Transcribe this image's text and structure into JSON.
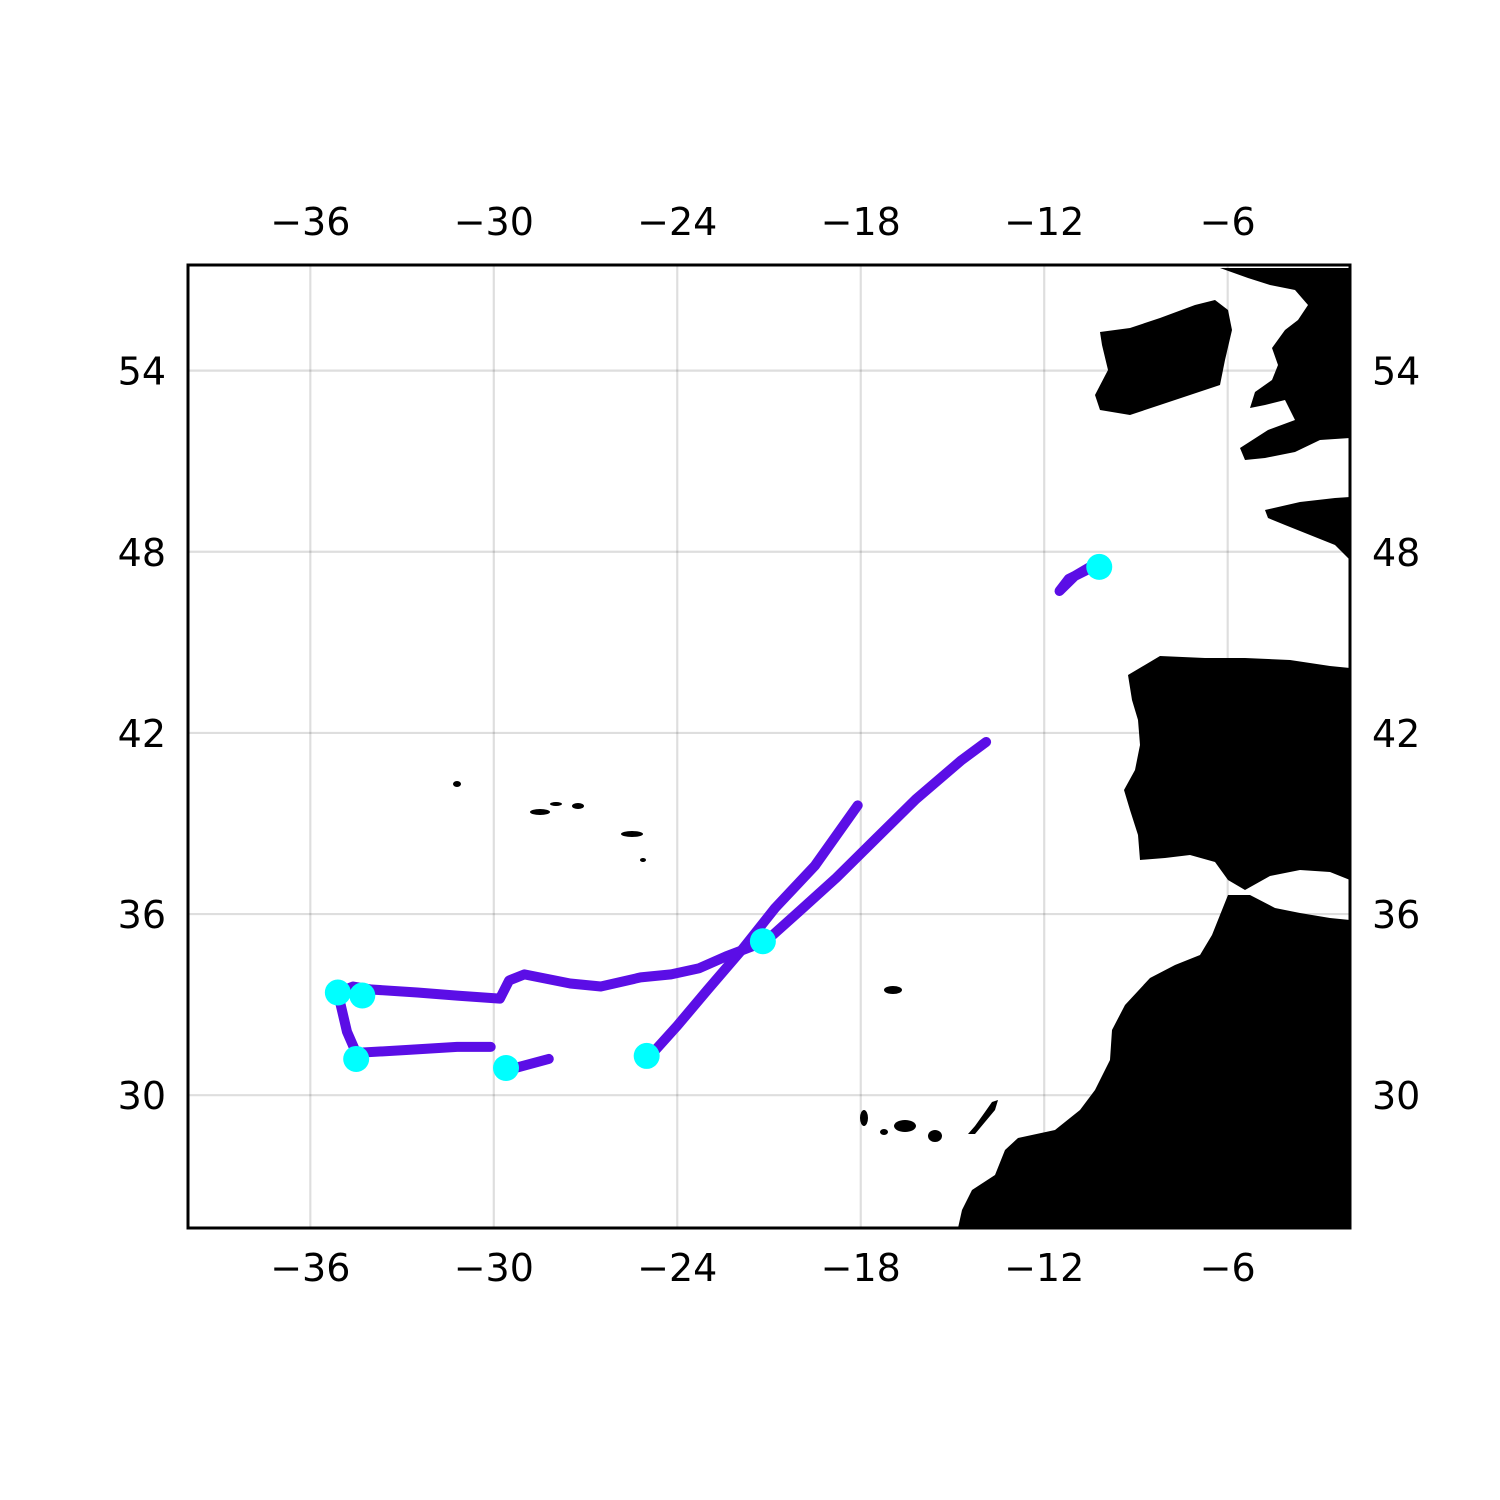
{
  "chart_data": {
    "type": "map",
    "projection": "equirectangular",
    "xlim": [
      -40,
      -2
    ],
    "ylim": [
      25.6,
      57.5
    ],
    "x_ticks": [
      -36,
      -30,
      -24,
      -18,
      -12,
      -6
    ],
    "y_ticks": [
      30,
      36,
      42,
      48,
      54
    ],
    "x_tick_labels": [
      "−36",
      "−30",
      "−24",
      "−18",
      "−12",
      "−6"
    ],
    "y_tick_labels": [
      "30",
      "36",
      "42",
      "48",
      "54"
    ],
    "grid": true,
    "colors": {
      "track": "#5b0ee6",
      "marker": "#00ffff",
      "land": "#000000",
      "background": "#ffffff"
    },
    "tracks": [
      {
        "points": [
          [
            -10.2,
            47.7
          ],
          [
            -10.6,
            47.4
          ],
          [
            -11.2,
            47.1
          ],
          [
            -11.5,
            46.7
          ],
          [
            -11.0,
            47.2
          ],
          [
            -10.5,
            47.5
          ]
        ]
      },
      {
        "points": [
          [
            -24.8,
            31.4
          ],
          [
            -24.0,
            32.3
          ],
          [
            -23.0,
            33.5
          ],
          [
            -21.9,
            34.8
          ],
          [
            -20.8,
            36.2
          ],
          [
            -19.5,
            37.6
          ],
          [
            -18.1,
            39.6
          ]
        ]
      },
      {
        "points": [
          [
            -21.1,
            35.1
          ],
          [
            -20.0,
            36.1
          ],
          [
            -18.8,
            37.2
          ],
          [
            -17.5,
            38.5
          ],
          [
            -16.2,
            39.8
          ],
          [
            -14.7,
            41.1
          ],
          [
            -13.9,
            41.7
          ]
        ]
      },
      {
        "points": [
          [
            -21.1,
            35.1
          ],
          [
            -22.4,
            34.6
          ],
          [
            -23.3,
            34.2
          ],
          [
            -24.2,
            34.0
          ],
          [
            -25.2,
            33.9
          ],
          [
            -26.5,
            33.6
          ],
          [
            -27.5,
            33.7
          ],
          [
            -29.0,
            34.0
          ],
          [
            -29.5,
            33.8
          ],
          [
            -29.8,
            33.2
          ],
          [
            -31.2,
            33.3
          ],
          [
            -32.5,
            33.4
          ],
          [
            -34.0,
            33.5
          ],
          [
            -34.6,
            33.6
          ],
          [
            -35.1,
            33.4
          ],
          [
            -34.8,
            32.1
          ],
          [
            -34.5,
            31.4
          ],
          [
            -32.8,
            31.5
          ],
          [
            -31.2,
            31.6
          ],
          [
            -30.4,
            31.6
          ],
          [
            -30.1,
            31.6
          ]
        ]
      },
      {
        "points": [
          [
            -29.3,
            30.9
          ],
          [
            -28.2,
            31.2
          ]
        ]
      }
    ],
    "markers": [
      {
        "lon": -10.2,
        "lat": 47.5
      },
      {
        "lon": -21.2,
        "lat": 35.1
      },
      {
        "lon": -25.0,
        "lat": 31.3
      },
      {
        "lon": -35.1,
        "lat": 33.4
      },
      {
        "lon": -34.3,
        "lat": 33.3
      },
      {
        "lon": -34.5,
        "lat": 31.2
      },
      {
        "lon": -29.6,
        "lat": 30.9
      }
    ]
  }
}
